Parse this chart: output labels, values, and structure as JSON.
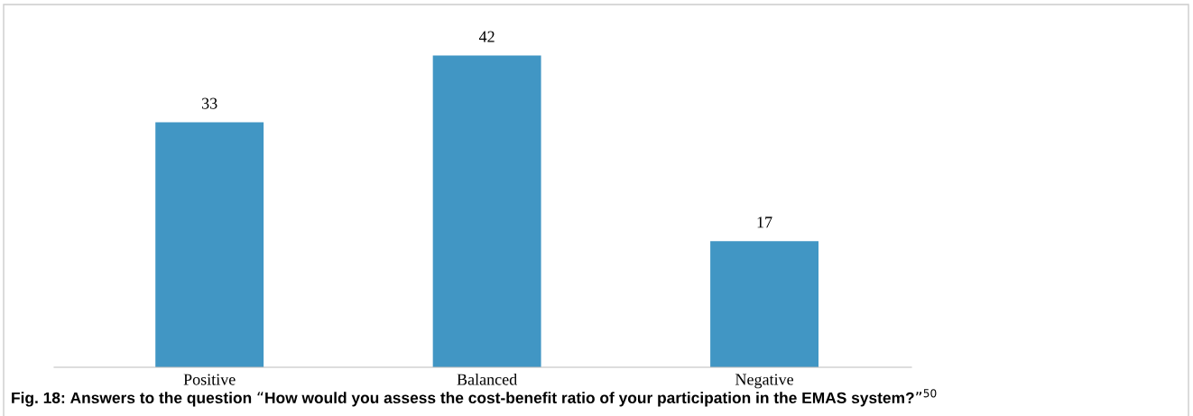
{
  "chart_data": {
    "type": "bar",
    "data_labels": true,
    "grid": false,
    "legend": false,
    "categories": [
      "Positive",
      "Balanced",
      "Negative"
    ],
    "values": [
      33,
      42,
      17
    ],
    "color": "#4196c4",
    "annotations": [
      "Fig. 18: Answers to the question “How would you assess the cost-benefit ratio of your participation in the EMAS system?”$^{50}$"
    ]
  }
}
